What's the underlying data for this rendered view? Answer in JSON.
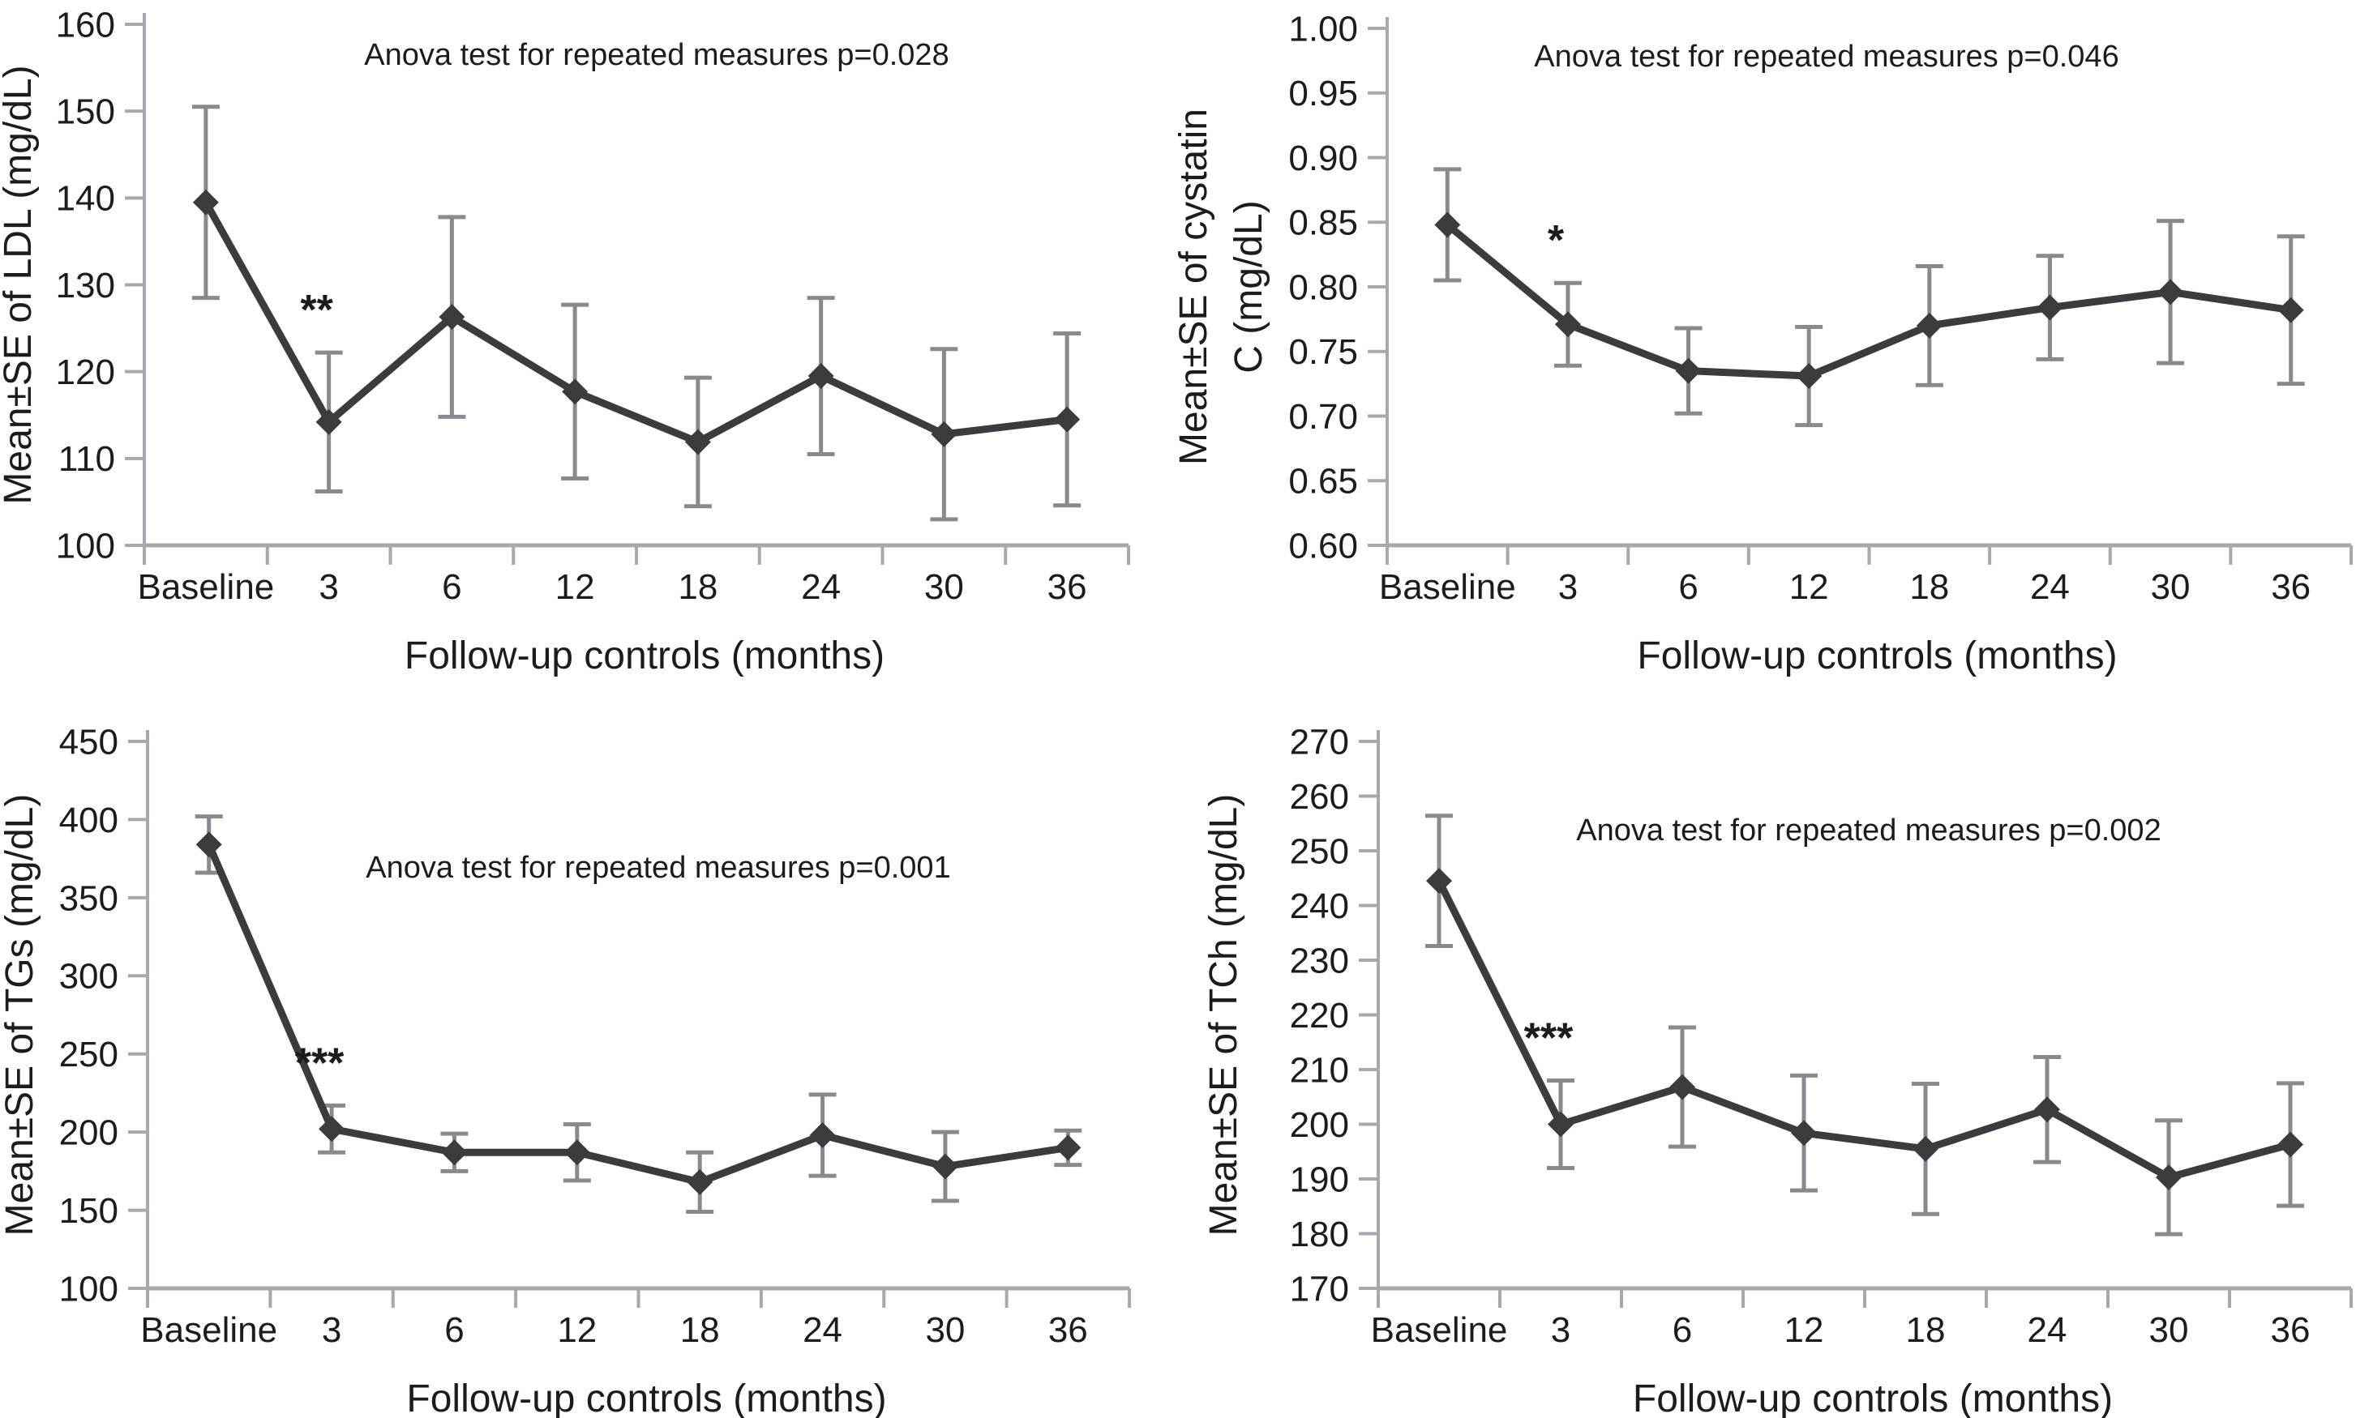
{
  "figure": {
    "background": "#ffffff",
    "series_color": "#3c3c40",
    "error_bar_color": "#8a8a8e",
    "axis_color": "#a9a9ad",
    "text_color": "#1c1c1c"
  },
  "chart_data": [
    {
      "type": "line",
      "name": "ldl",
      "ylabel_lines": [
        "Mean±SE of LDL (mg/dL)"
      ],
      "xlabel": "Follow-up controls (months)",
      "annotation": "Anova test for repeated measures p=0.028",
      "significance": {
        "label": "**",
        "category": "3"
      },
      "categories": [
        "Baseline",
        "3",
        "6",
        "12",
        "18",
        "24",
        "30",
        "36"
      ],
      "means": [
        139.5,
        114.2,
        126.3,
        117.7,
        111.9,
        119.5,
        112.8,
        114.5
      ],
      "se": [
        11.0,
        8.0,
        11.5,
        10.0,
        7.4,
        9.0,
        9.8,
        9.9
      ],
      "ylim": [
        100,
        160
      ],
      "ytick_step": 10,
      "ytick_decimals": 0,
      "grid": false,
      "legend": null
    },
    {
      "type": "line",
      "name": "cystatin-c",
      "ylabel_lines": [
        "Mean±SE of cystatin",
        "C (mg/dL)"
      ],
      "xlabel": "Follow-up controls (months)",
      "annotation": "Anova test for repeated measures p=0.046",
      "significance": {
        "label": "*",
        "category": "3"
      },
      "categories": [
        "Baseline",
        "3",
        "6",
        "12",
        "18",
        "24",
        "30",
        "36"
      ],
      "means": [
        0.848,
        0.771,
        0.735,
        0.731,
        0.77,
        0.784,
        0.796,
        0.782
      ],
      "se": [
        0.043,
        0.032,
        0.033,
        0.038,
        0.046,
        0.04,
        0.055,
        0.057
      ],
      "ylim": [
        0.6,
        1.0
      ],
      "ytick_step": 0.05,
      "ytick_decimals": 2,
      "grid": false,
      "legend": null
    },
    {
      "type": "line",
      "name": "tgs",
      "ylabel_lines": [
        "Mean±SE of TGs (mg/dL)"
      ],
      "xlabel": "Follow-up controls (months)",
      "annotation": "Anova test for repeated measures p=0.001",
      "significance": {
        "label": "***",
        "category": "3"
      },
      "categories": [
        "Baseline",
        "3",
        "6",
        "12",
        "18",
        "24",
        "30",
        "36"
      ],
      "means": [
        384,
        202,
        187,
        187,
        168,
        198,
        178,
        190
      ],
      "se": [
        18,
        15,
        12,
        18,
        19,
        26,
        22,
        11
      ],
      "ylim": [
        100,
        450
      ],
      "ytick_step": 50,
      "ytick_decimals": 0,
      "grid": false,
      "legend": null
    },
    {
      "type": "line",
      "name": "tch",
      "ylabel_lines": [
        "Mean±SE of TCh (mg/dL)"
      ],
      "xlabel": "Follow-up controls (months)",
      "annotation": "Anova test for repeated measures p=0.002",
      "significance": {
        "label": "***",
        "category": "3"
      },
      "categories": [
        "Baseline",
        "3",
        "6",
        "12",
        "18",
        "24",
        "30",
        "36"
      ],
      "means": [
        244.5,
        200.0,
        206.8,
        198.4,
        195.5,
        202.7,
        190.3,
        196.3
      ],
      "se": [
        11.9,
        8.0,
        10.9,
        10.5,
        11.9,
        9.6,
        10.4,
        11.2
      ],
      "ylim": [
        170,
        270
      ],
      "ytick_step": 10,
      "ytick_decimals": 0,
      "grid": false,
      "legend": null
    }
  ]
}
